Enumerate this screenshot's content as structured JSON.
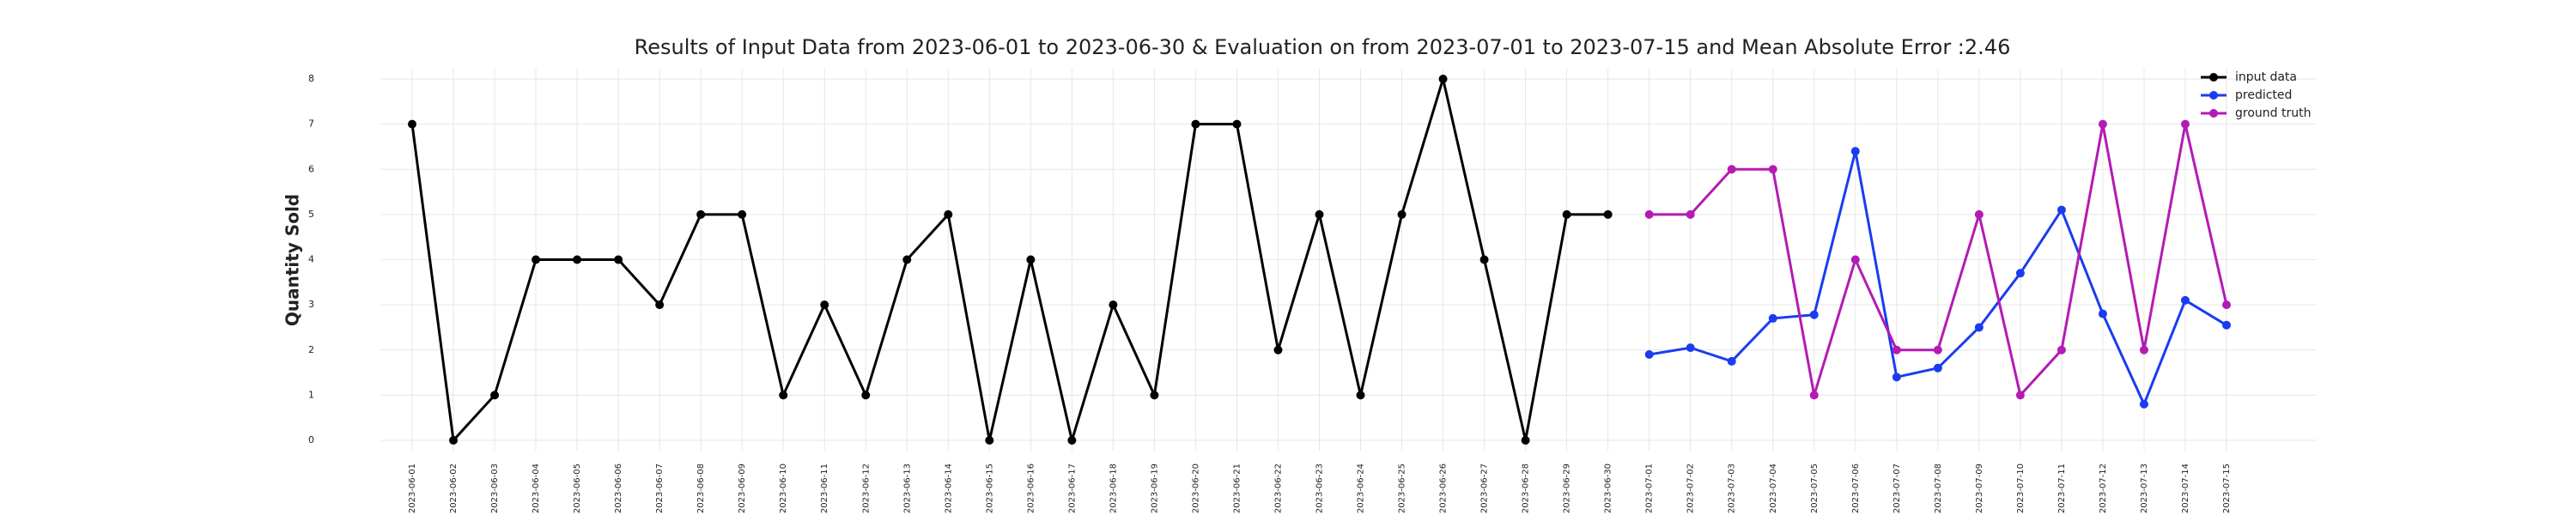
{
  "chart_data": {
    "type": "line",
    "title": "Results of Input Data from 2023-06-01 to 2023-06-30 & Evaluation on from 2023-07-01 to 2023-07-15 and Mean Absolute Error  :2.46",
    "ylabel": "Quantity Sold",
    "x": [
      "2023-06-01",
      "2023-06-02",
      "2023-06-03",
      "2023-06-04",
      "2023-06-05",
      "2023-06-06",
      "2023-06-07",
      "2023-06-08",
      "2023-06-09",
      "2023-06-10",
      "2023-06-11",
      "2023-06-12",
      "2023-06-13",
      "2023-06-14",
      "2023-06-15",
      "2023-06-16",
      "2023-06-17",
      "2023-06-18",
      "2023-06-19",
      "2023-06-20",
      "2023-06-21",
      "2023-06-22",
      "2023-06-23",
      "2023-06-24",
      "2023-06-25",
      "2023-06-26",
      "2023-06-27",
      "2023-06-28",
      "2023-06-29",
      "2023-06-30",
      "2023-07-01",
      "2023-07-02",
      "2023-07-03",
      "2023-07-04",
      "2023-07-05",
      "2023-07-06",
      "2023-07-07",
      "2023-07-08",
      "2023-07-09",
      "2023-07-10",
      "2023-07-11",
      "2023-07-12",
      "2023-07-13",
      "2023-07-14",
      "2023-07-15"
    ],
    "series": [
      {
        "name": "input data",
        "color": "#000000",
        "values": [
          7,
          0,
          1,
          4,
          4,
          4,
          3,
          5,
          5,
          1,
          3,
          1,
          4,
          5,
          0,
          4,
          0,
          3,
          1,
          7,
          7,
          2,
          5,
          1,
          5,
          8,
          4,
          0,
          5,
          5,
          null,
          null,
          null,
          null,
          null,
          null,
          null,
          null,
          null,
          null,
          null,
          null,
          null,
          null,
          null
        ]
      },
      {
        "name": "predicted",
        "color": "#1a3cf0",
        "values": [
          null,
          null,
          null,
          null,
          null,
          null,
          null,
          null,
          null,
          null,
          null,
          null,
          null,
          null,
          null,
          null,
          null,
          null,
          null,
          null,
          null,
          null,
          null,
          null,
          null,
          null,
          null,
          null,
          null,
          null,
          1.9,
          2.05,
          1.75,
          2.7,
          2.78,
          6.4,
          1.4,
          1.6,
          2.5,
          3.7,
          5.1,
          2.8,
          0.8,
          3.1,
          2.55
        ]
      },
      {
        "name": "ground truth",
        "color": "#b31bb3",
        "values": [
          null,
          null,
          null,
          null,
          null,
          null,
          null,
          null,
          null,
          null,
          null,
          null,
          null,
          null,
          null,
          null,
          null,
          null,
          null,
          null,
          null,
          null,
          null,
          null,
          null,
          null,
          null,
          null,
          null,
          null,
          5,
          5,
          6,
          6,
          1,
          4,
          2,
          2,
          5,
          1,
          2,
          7,
          2,
          7,
          3
        ]
      }
    ],
    "ylim": [
      0,
      8
    ],
    "yticks": [
      0,
      1,
      2,
      3,
      4,
      5,
      6,
      7,
      8
    ],
    "grid": true,
    "legend": "upper right"
  }
}
